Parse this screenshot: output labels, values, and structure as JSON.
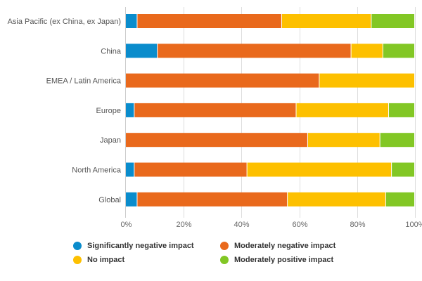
{
  "chart_data": {
    "type": "bar",
    "orientation": "horizontal",
    "stacked": true,
    "normalized": true,
    "title": "",
    "xlabel": "",
    "ylabel": "",
    "xlim": [
      0,
      100
    ],
    "x_ticks": [
      "0%",
      "20%",
      "40%",
      "60%",
      "80%",
      "100%"
    ],
    "grid": true,
    "legend_position": "bottom",
    "categories": [
      "Asia Pacific (ex China, ex Japan)",
      "China",
      "EMEA / Latin America",
      "Europe",
      "Japan",
      "North America",
      "Global"
    ],
    "series": [
      {
        "name": "Significantly negative impact",
        "color": "#0A8CCC",
        "values": [
          4,
          11,
          0,
          3,
          0,
          3,
          4
        ]
      },
      {
        "name": "Moderately negative impact",
        "color": "#E9691C",
        "values": [
          50,
          67,
          67,
          56,
          63,
          39,
          52
        ]
      },
      {
        "name": "No impact",
        "color": "#FDC000",
        "values": [
          31,
          11,
          33,
          32,
          25,
          50,
          34
        ]
      },
      {
        "name": "Moderately positive impact",
        "color": "#82C725",
        "values": [
          15,
          11,
          0,
          9,
          12,
          8,
          10
        ]
      }
    ]
  }
}
